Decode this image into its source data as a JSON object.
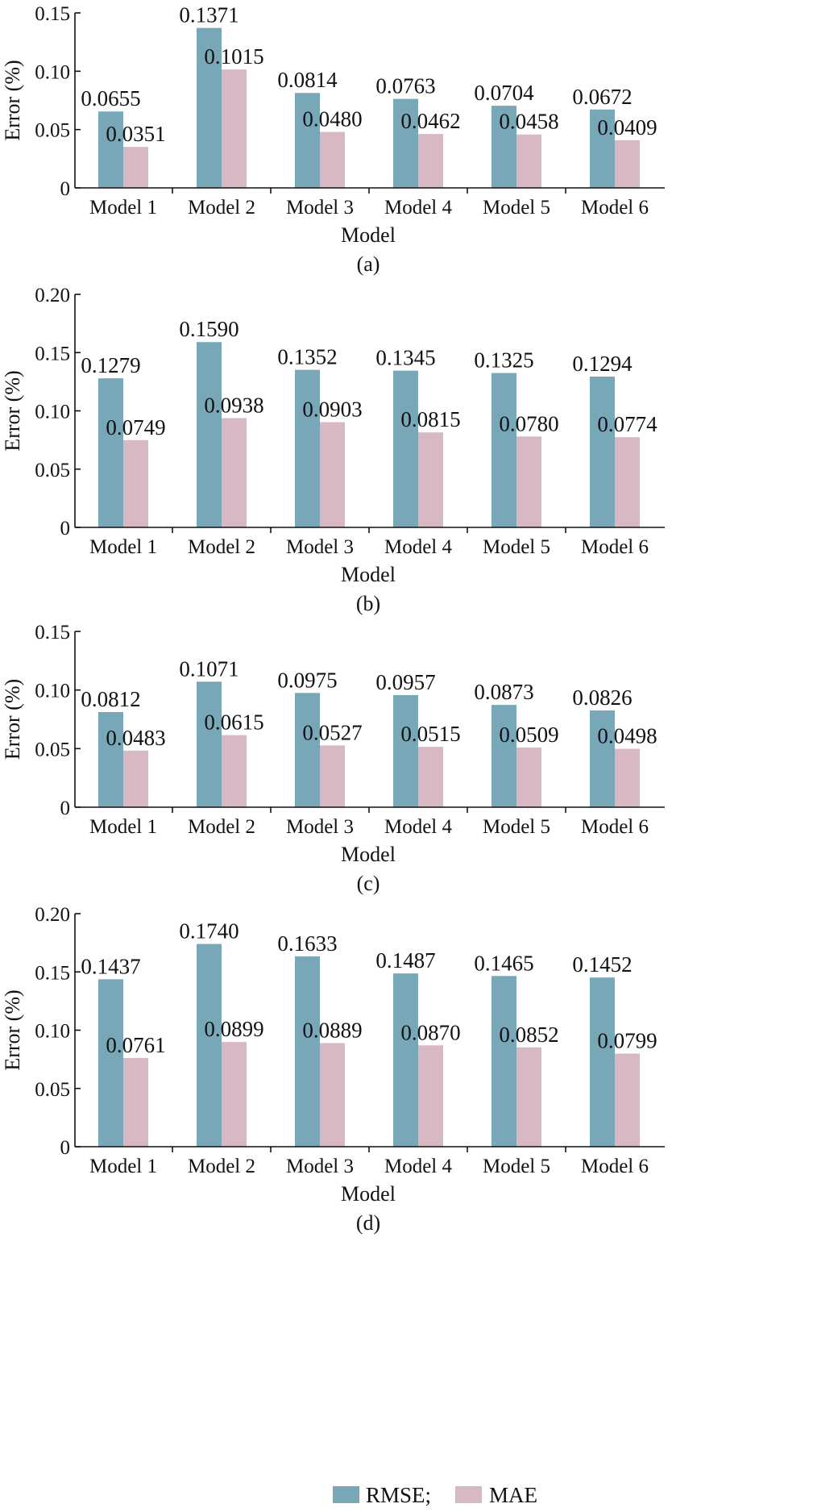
{
  "legend": {
    "items": [
      {
        "name": "RMSE;"
      },
      {
        "name": "MAE"
      }
    ]
  },
  "colors": {
    "rmse": "#78a7b8",
    "mae": "#d8b9c3",
    "axis": "#111111"
  },
  "chart_data": [
    {
      "type": "bar",
      "panel_label": "(a)",
      "categories": [
        "Model 1",
        "Model 2",
        "Model 3",
        "Model 4",
        "Model 5",
        "Model 6"
      ],
      "series": [
        {
          "name": "RMSE",
          "values": [
            0.0655,
            0.1371,
            0.0814,
            0.0763,
            0.0704,
            0.0672
          ],
          "labels": [
            "0.0655",
            "0.1371",
            "0.0814",
            "0.0763",
            "0.0704",
            "0.0672"
          ]
        },
        {
          "name": "MAE",
          "values": [
            0.0351,
            0.1015,
            0.048,
            0.0462,
            0.0458,
            0.0409
          ],
          "labels": [
            "0.0351",
            "0.1015",
            "0.0480",
            "0.0462",
            "0.0458",
            "0.0409"
          ]
        }
      ],
      "xlabel": "Model",
      "ylabel": "Error (%)",
      "ylim": [
        0,
        0.15
      ],
      "yticks": [
        0,
        0.05,
        0.1,
        0.15
      ],
      "ytick_labels": [
        "0",
        "0.05",
        "0.10",
        "0.15"
      ],
      "grid": false
    },
    {
      "type": "bar",
      "panel_label": "(b)",
      "categories": [
        "Model 1",
        "Model 2",
        "Model 3",
        "Model 4",
        "Model 5",
        "Model 6"
      ],
      "series": [
        {
          "name": "RMSE",
          "values": [
            0.1279,
            0.159,
            0.1352,
            0.1345,
            0.1325,
            0.1294
          ],
          "labels": [
            "0.1279",
            "0.1590",
            "0.1352",
            "0.1345",
            "0.1325",
            "0.1294"
          ]
        },
        {
          "name": "MAE",
          "values": [
            0.0749,
            0.0938,
            0.0903,
            0.0815,
            0.078,
            0.0774
          ],
          "labels": [
            "0.0749",
            "0.0938",
            "0.0903",
            "0.0815",
            "0.0780",
            "0.0774"
          ]
        }
      ],
      "xlabel": "Model",
      "ylabel": "Error (%)",
      "ylim": [
        0,
        0.2
      ],
      "yticks": [
        0,
        0.05,
        0.1,
        0.15,
        0.2
      ],
      "ytick_labels": [
        "0",
        "0.05",
        "0.10",
        "0.15",
        "0.20"
      ],
      "grid": false
    },
    {
      "type": "bar",
      "panel_label": "(c)",
      "categories": [
        "Model 1",
        "Model 2",
        "Model 3",
        "Model 4",
        "Model 5",
        "Model 6"
      ],
      "series": [
        {
          "name": "RMSE",
          "values": [
            0.0812,
            0.1071,
            0.0975,
            0.0957,
            0.0873,
            0.0826
          ],
          "labels": [
            "0.0812",
            "0.1071",
            "0.0975",
            "0.0957",
            "0.0873",
            "0.0826"
          ]
        },
        {
          "name": "MAE",
          "values": [
            0.0483,
            0.0615,
            0.0527,
            0.0515,
            0.0509,
            0.0498
          ],
          "labels": [
            "0.0483",
            "0.0615",
            "0.0527",
            "0.0515",
            "0.0509",
            "0.0498"
          ]
        }
      ],
      "xlabel": "Model",
      "ylabel": "Error (%)",
      "ylim": [
        0,
        0.15
      ],
      "yticks": [
        0,
        0.05,
        0.1,
        0.15
      ],
      "ytick_labels": [
        "0",
        "0.05",
        "0.10",
        "0.15"
      ],
      "grid": false
    },
    {
      "type": "bar",
      "panel_label": "(d)",
      "categories": [
        "Model 1",
        "Model 2",
        "Model 3",
        "Model 4",
        "Model 5",
        "Model 6"
      ],
      "series": [
        {
          "name": "RMSE",
          "values": [
            0.1437,
            0.174,
            0.1633,
            0.1487,
            0.1465,
            0.1452
          ],
          "labels": [
            "0.1437",
            "0.1740",
            "0.1633",
            "0.1487",
            "0.1465",
            "0.1452"
          ]
        },
        {
          "name": "MAE",
          "values": [
            0.0761,
            0.0899,
            0.0889,
            0.087,
            0.0852,
            0.0799
          ],
          "labels": [
            "0.0761",
            "0.0899",
            "0.0889",
            "0.0870",
            "0.0852",
            "0.0799"
          ]
        }
      ],
      "xlabel": "Model",
      "ylabel": "Error (%)",
      "ylim": [
        0,
        0.2
      ],
      "yticks": [
        0,
        0.05,
        0.1,
        0.15,
        0.2
      ],
      "ytick_labels": [
        "0",
        "0.05",
        "0.10",
        "0.15",
        "0.20"
      ],
      "grid": false
    }
  ]
}
